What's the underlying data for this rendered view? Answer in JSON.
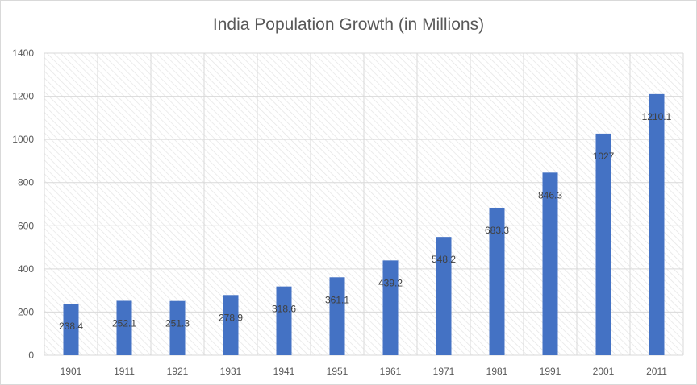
{
  "chart_data": {
    "type": "bar",
    "title": "India Population Growth (in Millions)",
    "xlabel": "",
    "ylabel": "",
    "categories": [
      "1901",
      "1911",
      "1921",
      "1931",
      "1941",
      "1951",
      "1961",
      "1971",
      "1981",
      "1991",
      "2001",
      "2011"
    ],
    "values": [
      238.4,
      252.1,
      251.3,
      278.9,
      318.6,
      361.1,
      439.2,
      548.2,
      683.3,
      846.3,
      1027,
      1210.1
    ],
    "data_labels": [
      "238.4",
      "252.1",
      "251.3",
      "278.9",
      "318.6",
      "361.1",
      "439.2",
      "548.2",
      "683.3",
      "846.3",
      "1027",
      "1210.1"
    ],
    "ylim": [
      0,
      1400
    ],
    "yticks": [
      "0",
      "200",
      "400",
      "600",
      "800",
      "1000",
      "1200",
      "1400"
    ],
    "grid": true,
    "legend": "none",
    "colors": {
      "bar": "#4472C4",
      "grid": "#d9d9d9",
      "hatch": "#e7e7e7",
      "text": "#595959"
    }
  }
}
